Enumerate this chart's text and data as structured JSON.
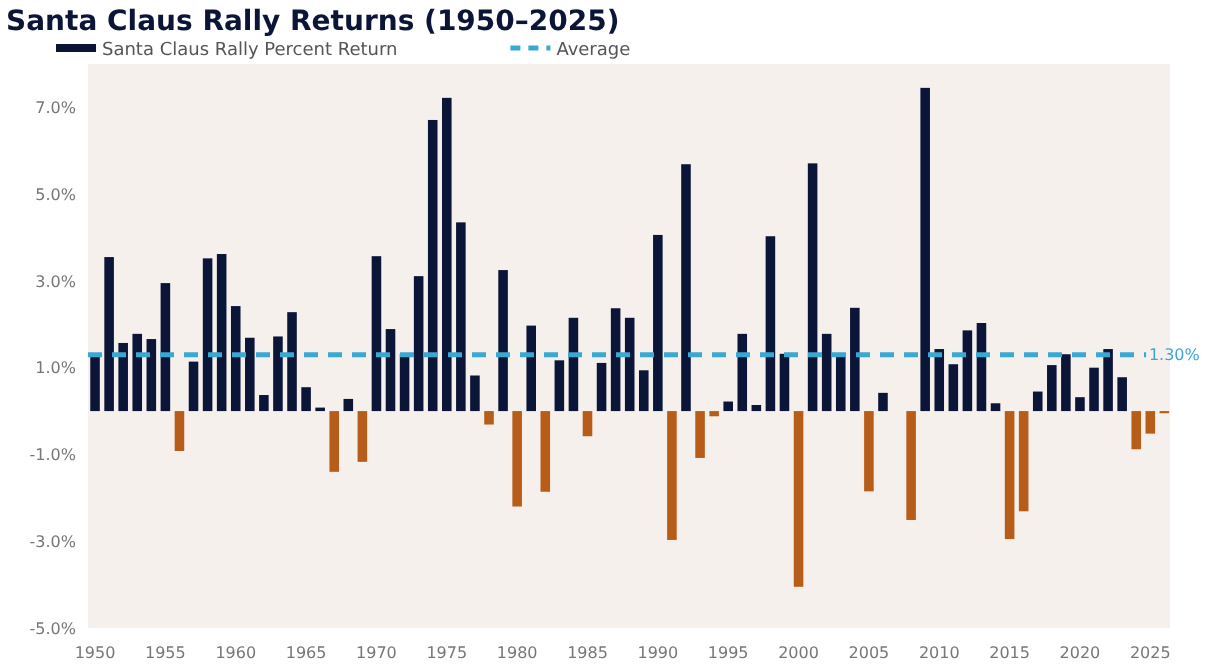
{
  "chart_data": {
    "type": "bar",
    "title": "Santa Claus Rally Returns (1950–2025)",
    "legend": "top left",
    "x": [
      1950,
      1951,
      1952,
      1953,
      1954,
      1955,
      1956,
      1957,
      1958,
      1959,
      1960,
      1961,
      1962,
      1963,
      1964,
      1965,
      1966,
      1967,
      1968,
      1969,
      1970,
      1971,
      1972,
      1973,
      1974,
      1975,
      1976,
      1977,
      1978,
      1979,
      1980,
      1981,
      1982,
      1983,
      1984,
      1985,
      1986,
      1987,
      1988,
      1989,
      1990,
      1991,
      1992,
      1993,
      1994,
      1995,
      1996,
      1997,
      1998,
      1999,
      2000,
      2001,
      2002,
      2003,
      2004,
      2005,
      2006,
      2007,
      2008,
      2009,
      2010,
      2011,
      2012,
      2013,
      2014,
      2015,
      2016,
      2017,
      2018,
      2019,
      2020,
      2021,
      2022,
      2023,
      2024,
      2025,
      2026
    ],
    "xlim": [
      1949.5,
      2026.4
    ],
    "xticks": [
      1950,
      1955,
      1960,
      1965,
      1970,
      1975,
      1980,
      1985,
      1990,
      1995,
      2000,
      2005,
      2010,
      2015,
      2020,
      2025
    ],
    "ylim": [
      -5,
      8
    ],
    "yticks": [
      {
        "value": -5,
        "label": "-5.0%"
      },
      {
        "value": -3,
        "label": "-3.0%"
      },
      {
        "value": -1,
        "label": "-1.0%"
      },
      {
        "value": 1,
        "label": "1.0%"
      },
      {
        "value": 3,
        "label": "3.0%"
      },
      {
        "value": 5,
        "label": "5.0%"
      },
      {
        "value": 7,
        "label": "7.0%"
      }
    ],
    "series": [
      {
        "name": "Santa Claus Rally Percent Return",
        "color": "#0b1538",
        "values": [
          1.26,
          3.55,
          1.57,
          1.78,
          1.66,
          2.95,
          -0.92,
          1.14,
          3.52,
          3.62,
          2.42,
          1.69,
          0.37,
          1.72,
          2.28,
          0.55,
          0.08,
          -1.4,
          0.28,
          -1.17,
          3.57,
          1.89,
          1.32,
          3.11,
          6.71,
          7.22,
          4.35,
          0.82,
          -0.31,
          3.25,
          -2.2,
          1.97,
          -1.86,
          1.17,
          2.15,
          -0.58,
          1.11,
          2.37,
          2.15,
          0.94,
          4.06,
          -2.97,
          5.69,
          -1.08,
          -0.12,
          0.22,
          1.78,
          0.14,
          4.03,
          1.32,
          -4.05,
          5.71,
          1.78,
          1.25,
          2.38,
          -1.85,
          0.42,
          0,
          -2.51,
          7.45,
          1.43,
          1.08,
          1.86,
          2.03,
          0.18,
          -2.95,
          -2.31,
          0.45,
          1.06,
          1.31,
          0.32,
          1.0,
          1.43,
          0.78,
          -0.88,
          -0.52,
          -0.05
        ],
        "colors": [
          "#0b1538",
          "#0b1538",
          "#0b1538",
          "#0b1538",
          "#0b1538",
          "#0b1538",
          "#b85c1a",
          "#0b1538",
          "#0b1538",
          "#0b1538",
          "#0b1538",
          "#0b1538",
          "#0b1538",
          "#0b1538",
          "#0b1538",
          "#0b1538",
          "#0b1538",
          "#b85c1a",
          "#0b1538",
          "#b85c1a",
          "#0b1538",
          "#0b1538",
          "#0b1538",
          "#0b1538",
          "#0b1538",
          "#0b1538",
          "#0b1538",
          "#0b1538",
          "#b85c1a",
          "#0b1538",
          "#b85c1a",
          "#0b1538",
          "#b85c1a",
          "#0b1538",
          "#0b1538",
          "#b85c1a",
          "#0b1538",
          "#0b1538",
          "#0b1538",
          "#0b1538",
          "#0b1538",
          "#b85c1a",
          "#0b1538",
          "#b85c1a",
          "#b85c1a",
          "#0b1538",
          "#0b1538",
          "#0b1538",
          "#0b1538",
          "#0b1538",
          "#b85c1a",
          "#0b1538",
          "#0b1538",
          "#0b1538",
          "#0b1538",
          "#b85c1a",
          "#0b1538",
          "#0b1538",
          "#b85c1a",
          "#0b1538",
          "#0b1538",
          "#0b1538",
          "#0b1538",
          "#0b1538",
          "#0b1538",
          "#b85c1a",
          "#b85c1a",
          "#0b1538",
          "#0b1538",
          "#0b1538",
          "#0b1538",
          "#0b1538",
          "#0b1538",
          "#0b1538",
          "#b85c1a",
          "#b85c1a",
          "#b85c1a"
        ]
      },
      {
        "type": "line",
        "name": "Average",
        "color": "#3aa8d0",
        "line_style": "dashed",
        "x": [
          1949.5,
          2024.7
        ],
        "values": [
          1.3,
          1.3
        ]
      }
    ],
    "annotations": [
      {
        "text": "1.30%",
        "x": 2024.9,
        "y": 1.3
      }
    ]
  }
}
